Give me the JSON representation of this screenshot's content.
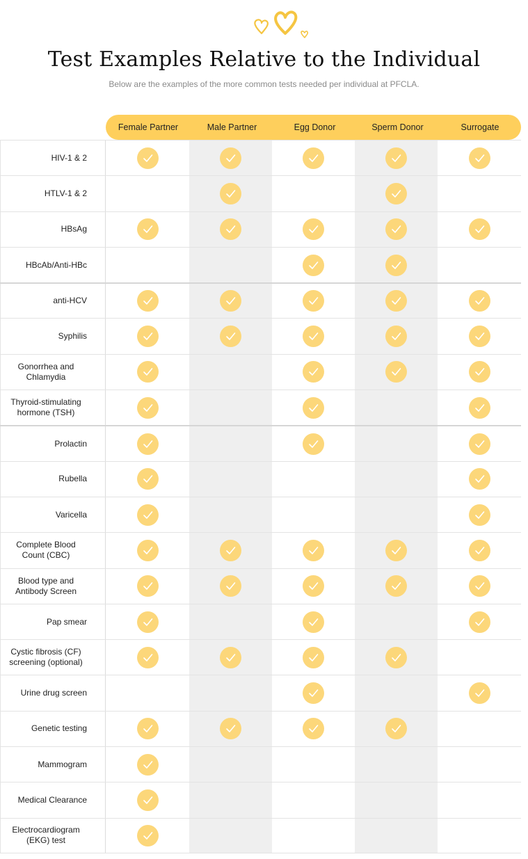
{
  "header": {
    "title": "Test Examples Relative to the Individual",
    "subtitle": "Below are the examples of the more common tests needed per individual at PFCLA.",
    "decoration_icon": "hearts-icon"
  },
  "colors": {
    "accent": "#fecf5c",
    "check": "#fcd77a",
    "shade": "#efefef"
  },
  "columns": [
    "Female Partner",
    "Male Partner",
    "Egg Donor",
    "Sperm Donor",
    "Surrogate"
  ],
  "rows": [
    {
      "label": "HIV-1 & 2",
      "checks": [
        true,
        true,
        true,
        true,
        true
      ]
    },
    {
      "label": "HTLV-1 & 2",
      "checks": [
        false,
        true,
        false,
        true,
        false
      ]
    },
    {
      "label": "HBsAg",
      "checks": [
        true,
        true,
        true,
        true,
        true
      ]
    },
    {
      "label": "HBcAb/Anti-HBc",
      "checks": [
        false,
        false,
        true,
        true,
        false
      ]
    },
    {
      "label": "anti-HCV",
      "checks": [
        true,
        true,
        true,
        true,
        true
      ],
      "group_start": true
    },
    {
      "label": "Syphilis",
      "checks": [
        true,
        true,
        true,
        true,
        true
      ]
    },
    {
      "label": "Gonorrhea and Chlamydia",
      "checks": [
        true,
        false,
        true,
        true,
        true
      ]
    },
    {
      "label": "Thyroid-stimulating hormone (TSH)",
      "checks": [
        true,
        false,
        true,
        false,
        true
      ]
    },
    {
      "label": "Prolactin",
      "checks": [
        true,
        false,
        true,
        false,
        true
      ],
      "group_start": true
    },
    {
      "label": "Rubella",
      "checks": [
        true,
        false,
        false,
        false,
        true
      ]
    },
    {
      "label": "Varicella",
      "checks": [
        true,
        false,
        false,
        false,
        true
      ]
    },
    {
      "label": "Complete Blood Count (CBC)",
      "checks": [
        true,
        true,
        true,
        true,
        true
      ]
    },
    {
      "label": "Blood type and Antibody Screen",
      "checks": [
        true,
        true,
        true,
        true,
        true
      ]
    },
    {
      "label": "Pap smear",
      "checks": [
        true,
        false,
        true,
        false,
        true
      ]
    },
    {
      "label": "Cystic fibrosis (CF) screening (optional)",
      "checks": [
        true,
        true,
        true,
        true,
        false
      ]
    },
    {
      "label": "Urine drug screen",
      "checks": [
        false,
        false,
        true,
        false,
        true
      ]
    },
    {
      "label": "Genetic testing",
      "checks": [
        true,
        true,
        true,
        true,
        false
      ]
    },
    {
      "label": "Mammogram",
      "checks": [
        true,
        false,
        false,
        false,
        false
      ]
    },
    {
      "label": "Medical Clearance",
      "checks": [
        true,
        false,
        false,
        false,
        false
      ]
    },
    {
      "label": "Electrocardiogram (EKG) test",
      "checks": [
        true,
        false,
        false,
        false,
        false
      ]
    }
  ]
}
